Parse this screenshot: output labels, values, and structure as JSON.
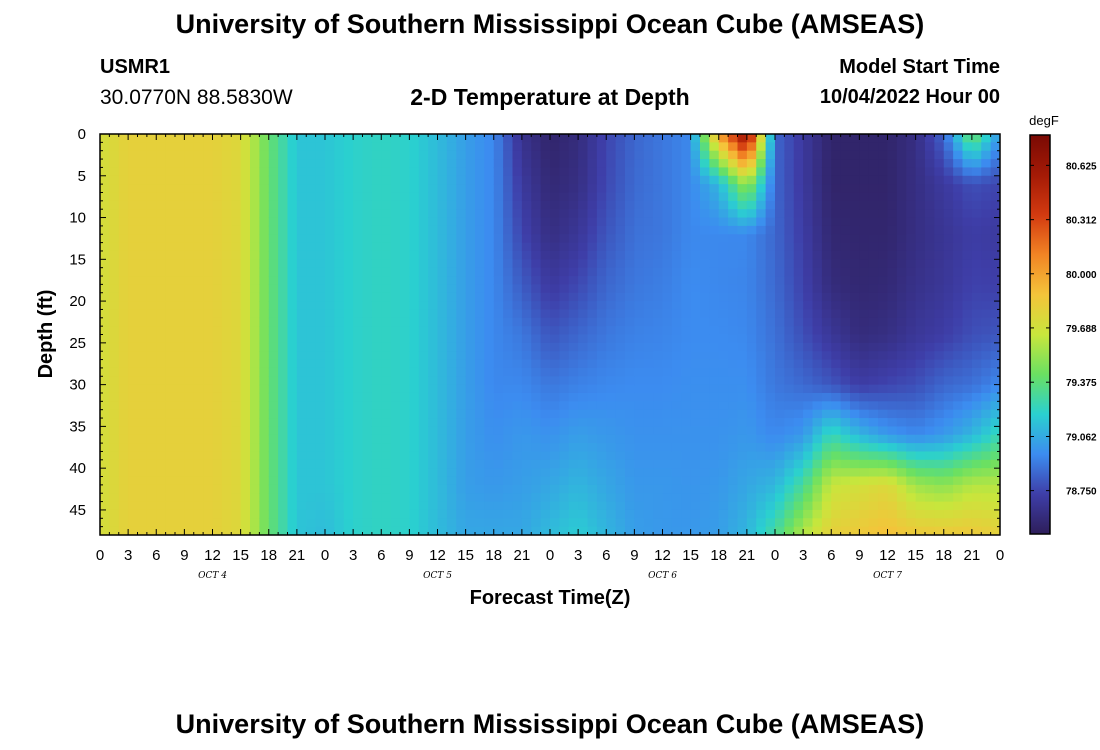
{
  "header": {
    "title": "University of Southern Mississippi Ocean Cube (AMSEAS)",
    "station_id": "USMR1",
    "station_coords": "30.0770N  88.5830W",
    "chart_title": "2-D Temperature at Depth",
    "model_start_label": "Model Start Time",
    "model_start_value": "10/04/2022 Hour 00"
  },
  "footer": {
    "title": "University of Southern Mississippi Ocean Cube (AMSEAS)"
  },
  "chart_data": {
    "type": "heatmap",
    "title": "2-D Temperature at Depth",
    "xlabel": "Forecast Time(Z)",
    "ylabel": "Depth (ft)",
    "x_ticks": [
      "0",
      "3",
      "6",
      "9",
      "12",
      "15",
      "18",
      "21",
      "0",
      "3",
      "6",
      "9",
      "12",
      "15",
      "18",
      "21",
      "0",
      "3",
      "6",
      "9",
      "12",
      "15",
      "18",
      "21",
      "0",
      "3",
      "6",
      "9",
      "12",
      "15",
      "18",
      "21",
      "0"
    ],
    "date_labels": [
      {
        "label": "OCT 4",
        "hour": 12
      },
      {
        "label": "OCT 5",
        "hour": 36
      },
      {
        "label": "OCT 6",
        "hour": 60
      },
      {
        "label": "OCT 7",
        "hour": 84
      }
    ],
    "x_range_hours": [
      0,
      96
    ],
    "y_ticks": [
      0,
      5,
      10,
      15,
      20,
      25,
      30,
      35,
      40,
      45
    ],
    "y_range": [
      0,
      48
    ],
    "y_inverted": true,
    "colorbar": {
      "unit": "degF",
      "min": 78.5,
      "max": 80.8,
      "tick_values": [
        80.625,
        80.312,
        80.0,
        79.688,
        79.375,
        79.062,
        78.75
      ],
      "tick_labels": [
        "80.625",
        "80.312",
        "80.000",
        "79.688",
        "79.375",
        "79.062",
        "78.750"
      ],
      "colors": [
        "#2e1e5a",
        "#3e3ea8",
        "#3c8cf0",
        "#2ad0d0",
        "#6ae062",
        "#c8e63c",
        "#f4c43a",
        "#f28424",
        "#d23a10",
        "#a41a06",
        "#7a0a04"
      ]
    },
    "grid_hours": [
      0,
      3,
      6,
      9,
      12,
      15,
      18,
      21,
      24,
      27,
      30,
      33,
      36,
      39,
      42,
      45,
      48,
      51,
      54,
      57,
      60,
      63,
      66,
      69,
      72,
      75,
      78,
      81,
      84,
      87,
      90,
      93,
      96
    ],
    "grid_depths": [
      0,
      6,
      12,
      18,
      24,
      30,
      36,
      42,
      48
    ],
    "values": [
      [
        79.7,
        79.7,
        79.7,
        79.7,
        79.7,
        79.7,
        79.7,
        79.7,
        79.7
      ],
      [
        79.8,
        79.8,
        79.8,
        79.8,
        79.8,
        79.8,
        79.8,
        79.8,
        79.8
      ],
      [
        79.8,
        79.8,
        79.8,
        79.8,
        79.8,
        79.8,
        79.8,
        79.8,
        79.8
      ],
      [
        79.8,
        79.8,
        79.8,
        79.8,
        79.8,
        79.8,
        79.8,
        79.8,
        79.8
      ],
      [
        79.8,
        79.8,
        79.8,
        79.8,
        79.8,
        79.8,
        79.8,
        79.8,
        79.8
      ],
      [
        79.75,
        79.75,
        79.75,
        79.75,
        79.75,
        79.75,
        79.75,
        79.75,
        79.75
      ],
      [
        79.4,
        79.4,
        79.4,
        79.4,
        79.4,
        79.4,
        79.4,
        79.4,
        79.4
      ],
      [
        79.15,
        79.15,
        79.15,
        79.15,
        79.15,
        79.15,
        79.15,
        79.15,
        79.15
      ],
      [
        79.15,
        79.15,
        79.15,
        79.15,
        79.15,
        79.15,
        79.15,
        79.15,
        79.12
      ],
      [
        79.2,
        79.2,
        79.2,
        79.2,
        79.2,
        79.2,
        79.2,
        79.2,
        79.2
      ],
      [
        79.22,
        79.22,
        79.22,
        79.22,
        79.22,
        79.22,
        79.22,
        79.22,
        79.22
      ],
      [
        79.2,
        79.2,
        79.2,
        79.2,
        79.2,
        79.2,
        79.2,
        79.2,
        79.2
      ],
      [
        79.12,
        79.12,
        79.12,
        79.12,
        79.12,
        79.12,
        79.12,
        79.12,
        79.12
      ],
      [
        79.02,
        79.02,
        79.02,
        79.02,
        79.02,
        79.02,
        79.02,
        79.02,
        79.05
      ],
      [
        78.95,
        78.95,
        78.95,
        78.95,
        78.95,
        78.95,
        78.97,
        79.0,
        79.05
      ],
      [
        78.65,
        78.7,
        78.75,
        78.82,
        78.9,
        78.95,
        79.0,
        79.02,
        79.05
      ],
      [
        78.55,
        78.58,
        78.62,
        78.7,
        78.8,
        78.9,
        78.98,
        79.05,
        79.12
      ],
      [
        78.6,
        78.62,
        78.68,
        78.76,
        78.85,
        78.93,
        79.02,
        79.1,
        79.18
      ],
      [
        78.75,
        78.76,
        78.8,
        78.85,
        78.9,
        78.95,
        79.0,
        79.05,
        79.1
      ],
      [
        78.85,
        78.86,
        78.88,
        78.9,
        78.93,
        78.96,
        78.98,
        79.0,
        79.02
      ],
      [
        78.9,
        78.9,
        78.9,
        78.92,
        78.94,
        78.96,
        78.98,
        79.0,
        79.0
      ],
      [
        78.95,
        78.95,
        78.95,
        78.96,
        78.96,
        78.97,
        78.98,
        78.99,
        79.0
      ],
      [
        80.0,
        79.1,
        78.95,
        78.95,
        78.96,
        78.97,
        78.98,
        79.0,
        79.02
      ],
      [
        80.7,
        79.55,
        78.95,
        78.94,
        78.95,
        78.97,
        79.0,
        79.05,
        79.1
      ],
      [
        78.85,
        78.85,
        78.85,
        78.86,
        78.88,
        78.9,
        78.95,
        79.1,
        79.3
      ],
      [
        78.7,
        78.7,
        78.72,
        78.74,
        78.78,
        78.86,
        79.0,
        79.3,
        79.6
      ],
      [
        78.55,
        78.55,
        78.57,
        78.6,
        78.68,
        78.8,
        79.25,
        79.65,
        79.8
      ],
      [
        78.55,
        78.55,
        78.56,
        78.57,
        78.6,
        78.72,
        79.1,
        79.7,
        79.85
      ],
      [
        78.55,
        78.55,
        78.56,
        78.58,
        78.62,
        78.75,
        79.0,
        79.75,
        79.9
      ],
      [
        78.62,
        78.62,
        78.62,
        78.64,
        78.68,
        78.78,
        78.95,
        79.55,
        79.85
      ],
      [
        78.85,
        78.7,
        78.67,
        78.68,
        78.72,
        78.85,
        79.0,
        79.5,
        79.85
      ],
      [
        79.45,
        78.78,
        78.72,
        78.74,
        78.78,
        78.88,
        79.1,
        79.6,
        79.85
      ],
      [
        79.0,
        78.75,
        78.7,
        78.73,
        78.8,
        78.95,
        79.25,
        79.6,
        79.8
      ]
    ]
  }
}
